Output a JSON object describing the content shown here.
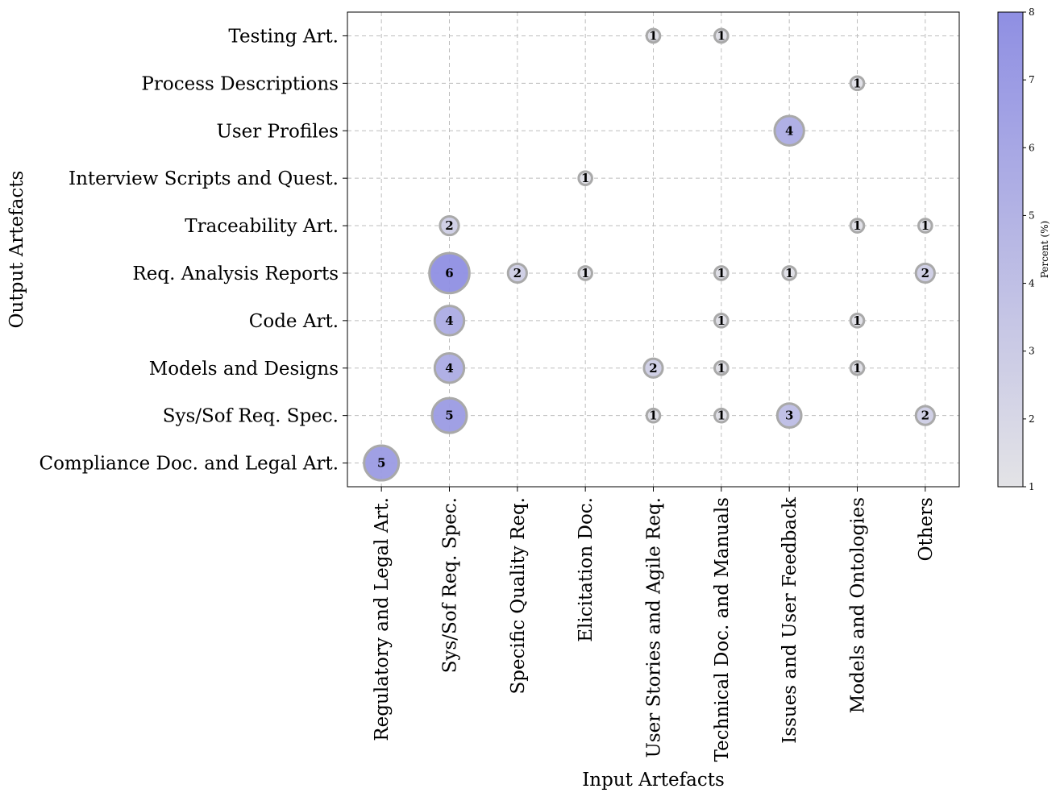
{
  "chart_data": {
    "type": "scatter",
    "subtype": "bubble",
    "xlabel": "Input Artefacts",
    "ylabel": "Output Artefacts",
    "x_categories": [
      "Regulatory and Legal Art.",
      "Sys/Sof Req. Spec.",
      "Specific Quality Req.",
      "Elicitation Doc.",
      "User Stories and Agile Req.",
      "Technical Doc. and Manuals",
      "Issues and User Feedback",
      "Models and Ontologies",
      "Others"
    ],
    "y_categories": [
      "Compliance Doc. and Legal Art.",
      "Sys/Sof Req. Spec.",
      "Models and Designs",
      "Code Art.",
      "Req. Analysis Reports",
      "Traceability Art.",
      "Interview Scripts and Quest.",
      "User Profiles",
      "Process Descriptions",
      "Testing Art."
    ],
    "points": [
      {
        "x": "Regulatory and Legal Art.",
        "y": "Compliance Doc. and Legal Art.",
        "value": 5,
        "percent": 7.0
      },
      {
        "x": "Sys/Sof Req. Spec.",
        "y": "Sys/Sof Req. Spec.",
        "value": 5,
        "percent": 7.0
      },
      {
        "x": "User Stories and Agile Req.",
        "y": "Sys/Sof Req. Spec.",
        "value": 1,
        "percent": 1.4
      },
      {
        "x": "Technical Doc. and Manuals",
        "y": "Sys/Sof Req. Spec.",
        "value": 1,
        "percent": 1.4
      },
      {
        "x": "Issues and User Feedback",
        "y": "Sys/Sof Req. Spec.",
        "value": 3,
        "percent": 4.2
      },
      {
        "x": "Others",
        "y": "Sys/Sof Req. Spec.",
        "value": 2,
        "percent": 2.8
      },
      {
        "x": "Sys/Sof Req. Spec.",
        "y": "Models and Designs",
        "value": 4,
        "percent": 5.6
      },
      {
        "x": "User Stories and Agile Req.",
        "y": "Models and Designs",
        "value": 2,
        "percent": 2.8
      },
      {
        "x": "Technical Doc. and Manuals",
        "y": "Models and Designs",
        "value": 1,
        "percent": 1.4
      },
      {
        "x": "Models and Ontologies",
        "y": "Models and Designs",
        "value": 1,
        "percent": 1.4
      },
      {
        "x": "Sys/Sof Req. Spec.",
        "y": "Code Art.",
        "value": 4,
        "percent": 5.6
      },
      {
        "x": "Technical Doc. and Manuals",
        "y": "Code Art.",
        "value": 1,
        "percent": 1.4
      },
      {
        "x": "Models and Ontologies",
        "y": "Code Art.",
        "value": 1,
        "percent": 1.4
      },
      {
        "x": "Sys/Sof Req. Spec.",
        "y": "Req. Analysis Reports",
        "value": 6,
        "percent": 8.3
      },
      {
        "x": "Specific Quality Req.",
        "y": "Req. Analysis Reports",
        "value": 2,
        "percent": 2.8
      },
      {
        "x": "Elicitation Doc.",
        "y": "Req. Analysis Reports",
        "value": 1,
        "percent": 1.4
      },
      {
        "x": "Technical Doc. and Manuals",
        "y": "Req. Analysis Reports",
        "value": 1,
        "percent": 1.4
      },
      {
        "x": "Issues and User Feedback",
        "y": "Req. Analysis Reports",
        "value": 1,
        "percent": 1.4
      },
      {
        "x": "Others",
        "y": "Req. Analysis Reports",
        "value": 2,
        "percent": 2.8
      },
      {
        "x": "Sys/Sof Req. Spec.",
        "y": "Traceability Art.",
        "value": 2,
        "percent": 2.8
      },
      {
        "x": "Models and Ontologies",
        "y": "Traceability Art.",
        "value": 1,
        "percent": 1.4
      },
      {
        "x": "Others",
        "y": "Traceability Art.",
        "value": 1,
        "percent": 1.4
      },
      {
        "x": "Elicitation Doc.",
        "y": "Interview Scripts and Quest.",
        "value": 1,
        "percent": 1.4
      },
      {
        "x": "Issues and User Feedback",
        "y": "User Profiles",
        "value": 4,
        "percent": 5.6
      },
      {
        "x": "Models and Ontologies",
        "y": "Process Descriptions",
        "value": 1,
        "percent": 1.4
      },
      {
        "x": "User Stories and Agile Req.",
        "y": "Testing Art.",
        "value": 1,
        "percent": 1.4
      },
      {
        "x": "Technical Doc. and Manuals",
        "y": "Testing Art.",
        "value": 1,
        "percent": 1.4
      }
    ],
    "colorbar": {
      "label": "Percent (%)",
      "min": 1,
      "max": 8,
      "ticks": [
        "1",
        "2",
        "3",
        "4",
        "5",
        "6",
        "7",
        "8"
      ],
      "color_low": "#e3e3e6",
      "color_high": "#8f8fe3"
    },
    "grid": true
  }
}
